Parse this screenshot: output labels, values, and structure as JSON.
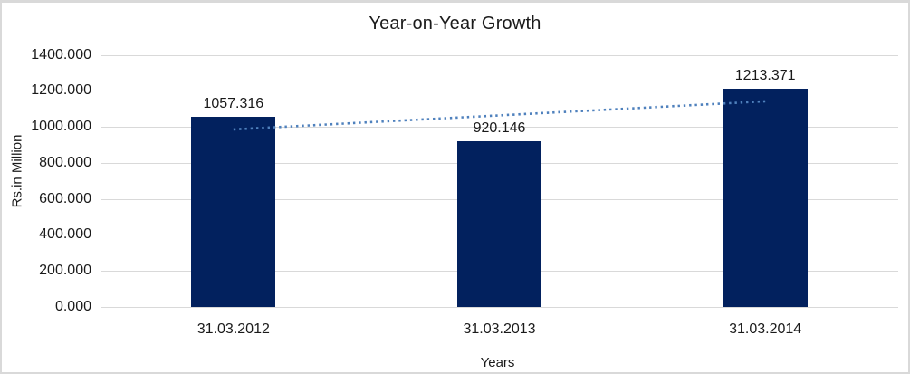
{
  "chart_data": {
    "type": "bar",
    "title": "Year-on-Year Growth",
    "xlabel": "Years",
    "ylabel": "Rs.in Million",
    "categories": [
      "31.03.2012",
      "31.03.2013",
      "31.03.2014"
    ],
    "values": [
      1057.316,
      920.146,
      1213.371
    ],
    "data_labels": [
      "1057.316",
      "920.146",
      "1213.371"
    ],
    "y_ticks": [
      "0.000",
      "200.000",
      "400.000",
      "600.000",
      "800.000",
      "1000.000",
      "1200.000",
      "1400.000"
    ],
    "y_tick_values": [
      0,
      200,
      400,
      600,
      800,
      1000,
      1200,
      1400
    ],
    "ylim": [
      0,
      1400
    ],
    "grid": true,
    "legend": "none",
    "bar_color": "#02215e",
    "gridline_color": "#d9d9d9",
    "frame_border_color": "#d9d9d9",
    "trendline": {
      "type": "linear",
      "style": "dotted",
      "color": "#4f81bd"
    }
  }
}
